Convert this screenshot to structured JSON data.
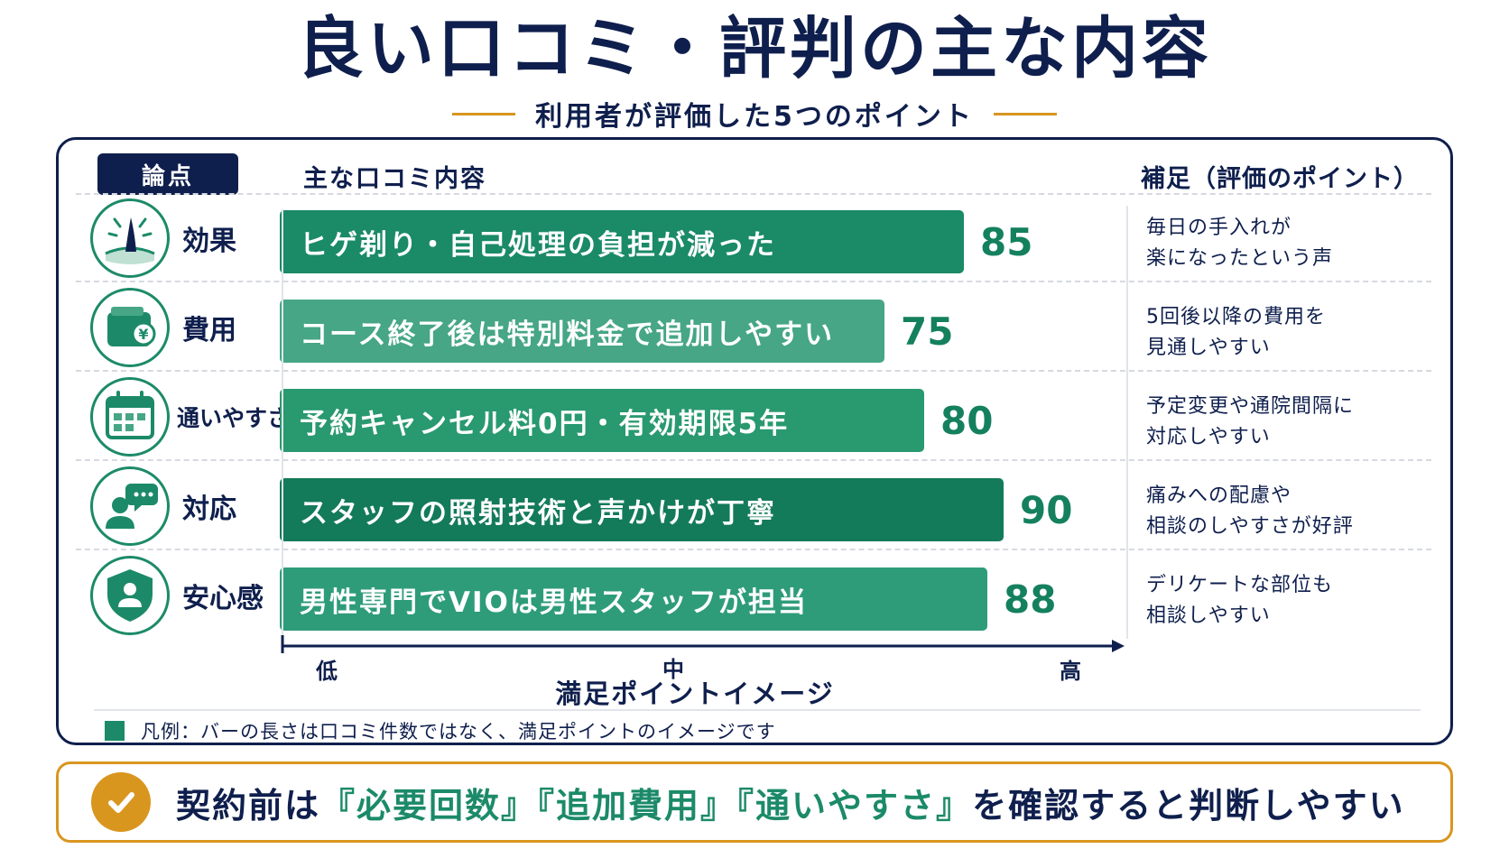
{
  "header": {
    "title": "良い口コミ・評判の主な内容",
    "subtitle": "利用者が評価した5つのポイント"
  },
  "table": {
    "col_topic": "論点",
    "col_main": "主な口コミ内容",
    "col_note": "補足（評価のポイント）"
  },
  "chart_data": {
    "type": "bar",
    "orientation": "horizontal",
    "categories": [
      "効果",
      "費用",
      "通いやすさ",
      "対応",
      "安心感"
    ],
    "labels": [
      "ヒゲ剃り・自己処理の負担が減った",
      "コース終了後は特別料金で追加しやすい",
      "予約キャンセル料0円・有効期限5年",
      "スタッフの照射技術と声かけが丁寧",
      "男性専門でVIOは男性スタッフが担当"
    ],
    "values": [
      85,
      75,
      80,
      90,
      88
    ],
    "value_labels": [
      "85",
      "75",
      "80",
      "90",
      "88"
    ],
    "notes": [
      [
        "毎日の手入れが",
        "楽になったという声"
      ],
      [
        "5回後以降の費用を",
        "見通しやすい"
      ],
      [
        "予定変更や通院間隔に",
        "対応しやすい"
      ],
      [
        "痛みへの配慮や",
        "相談のしやすさが好評"
      ],
      [
        "デリケートな部位も",
        "相談しやすい"
      ]
    ],
    "icons": [
      "hair-follicle-icon",
      "wallet-yen-icon",
      "calendar-icon",
      "chat-person-icon",
      "shield-person-icon"
    ],
    "x_ticks": [
      "低",
      "中",
      "高"
    ],
    "xlabel": "満足ポイントイメージ",
    "bar_colors": [
      "#1a8a67",
      "#46a686",
      "#29996f",
      "#137a5a",
      "#2e9c79"
    ],
    "value_color": "#14805e"
  },
  "legend": {
    "text": "凡例：バーの長さは口コミ件数ではなく、満足ポイントのイメージです",
    "color": "#1c8a68"
  },
  "footer": {
    "prefix": "契約前は",
    "h1": "『必要回数』",
    "h2": "『追加費用』",
    "h3": "『通いやすさ』",
    "suffix": "を確認すると判断しやすい",
    "accent": "#d9961f"
  }
}
